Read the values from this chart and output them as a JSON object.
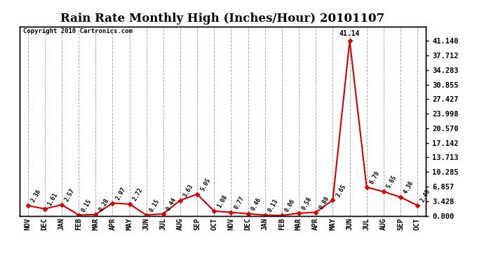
{
  "title": "Rain Rate Monthly High (Inches/Hour) 20101107",
  "copyright": "Copyright 2010 Cartronics.com",
  "categories": [
    "NOV",
    "DEC",
    "JAN",
    "FEB",
    "MAR",
    "APR",
    "MAY",
    "JUN",
    "JUL",
    "AUG",
    "SEP",
    "OCT",
    "NOV",
    "DEC",
    "JAN",
    "FEB",
    "MAR",
    "APR",
    "MAY",
    "JUN",
    "JUL",
    "AUG",
    "SEP",
    "OCT"
  ],
  "values": [
    2.36,
    1.61,
    2.57,
    0.15,
    0.28,
    2.97,
    2.72,
    0.15,
    0.44,
    3.63,
    5.05,
    1.08,
    0.77,
    0.46,
    0.13,
    0.06,
    0.58,
    0.8,
    3.65,
    41.14,
    6.7,
    5.65,
    4.36,
    2.4
  ],
  "line_color": "#cc0000",
  "marker_color": "#cc0000",
  "background_color": "#ffffff",
  "grid_color": "#aaaaaa",
  "title_fontsize": 12,
  "ylabel_right_ticks": [
    0.0,
    3.428,
    6.857,
    10.285,
    13.713,
    17.142,
    20.57,
    23.998,
    27.427,
    30.855,
    34.283,
    37.712,
    41.14
  ],
  "ylim_max": 44.57,
  "annotation_peak": "41.14",
  "annotation_peak_index": 19,
  "data_annotations": [
    "2.36",
    "1.61",
    "2.57",
    "0.15",
    "0.28",
    "2.97",
    "2.72",
    "0.15",
    "0.44",
    "3.63",
    "5.05",
    "1.08",
    "0.77",
    "0.46",
    "0.13",
    "0.06",
    "0.58",
    "0.80",
    "3.65",
    "",
    "6.70",
    "5.65",
    "4.36",
    "2.40"
  ]
}
